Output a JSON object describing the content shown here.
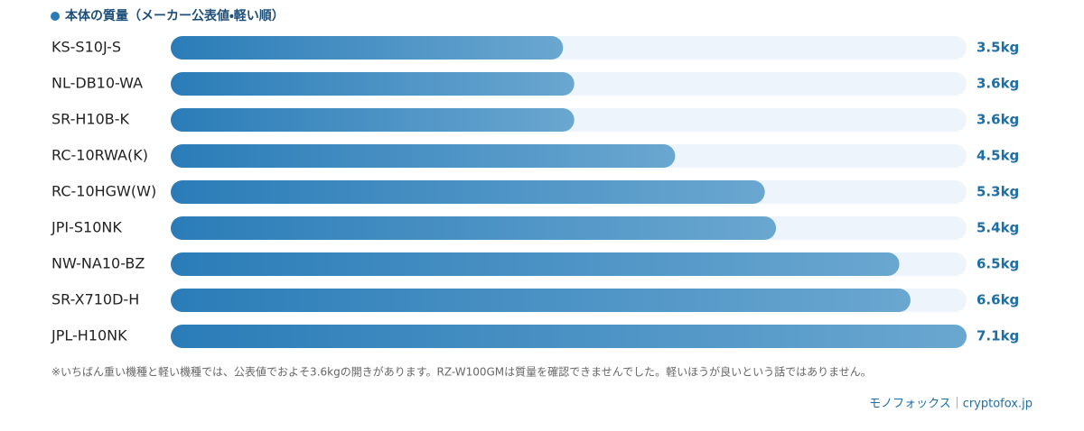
{
  "chart_data": {
    "type": "hbar",
    "title": "本体の質量（メーカー公表値・軽い順）",
    "categories": [
      "KS-S10J-S",
      "NL-DB10-WA",
      "SR-H10B-K",
      "RC-10RWA(K)",
      "RC-10HGW(W)",
      "JPI-S10NK",
      "NW-NA10-BZ",
      "SR-X710D-H",
      "JPL-H10NK"
    ],
    "values": [
      3.5,
      3.6,
      3.6,
      4.5,
      5.3,
      5.4,
      6.5,
      6.6,
      7.1
    ],
    "value_labels": [
      "3.5kg",
      "3.6kg",
      "3.6kg",
      "4.5kg",
      "5.3kg",
      "5.4kg",
      "6.5kg",
      "6.6kg",
      "7.1kg"
    ],
    "xlim": [
      0,
      7.1
    ],
    "color": "#2a7cb8",
    "color_end": "#6aa7d0",
    "track_color": "#edf4fb",
    "note": "※いちばん重い機種と軽い機種では、公表値でおよそ3.6kgの開きがあります。RZ-W100GMは質量を確認できませんでした。軽いほうが良いという話ではありません。",
    "source": "モノフォックス｜cryptofox.jp"
  }
}
